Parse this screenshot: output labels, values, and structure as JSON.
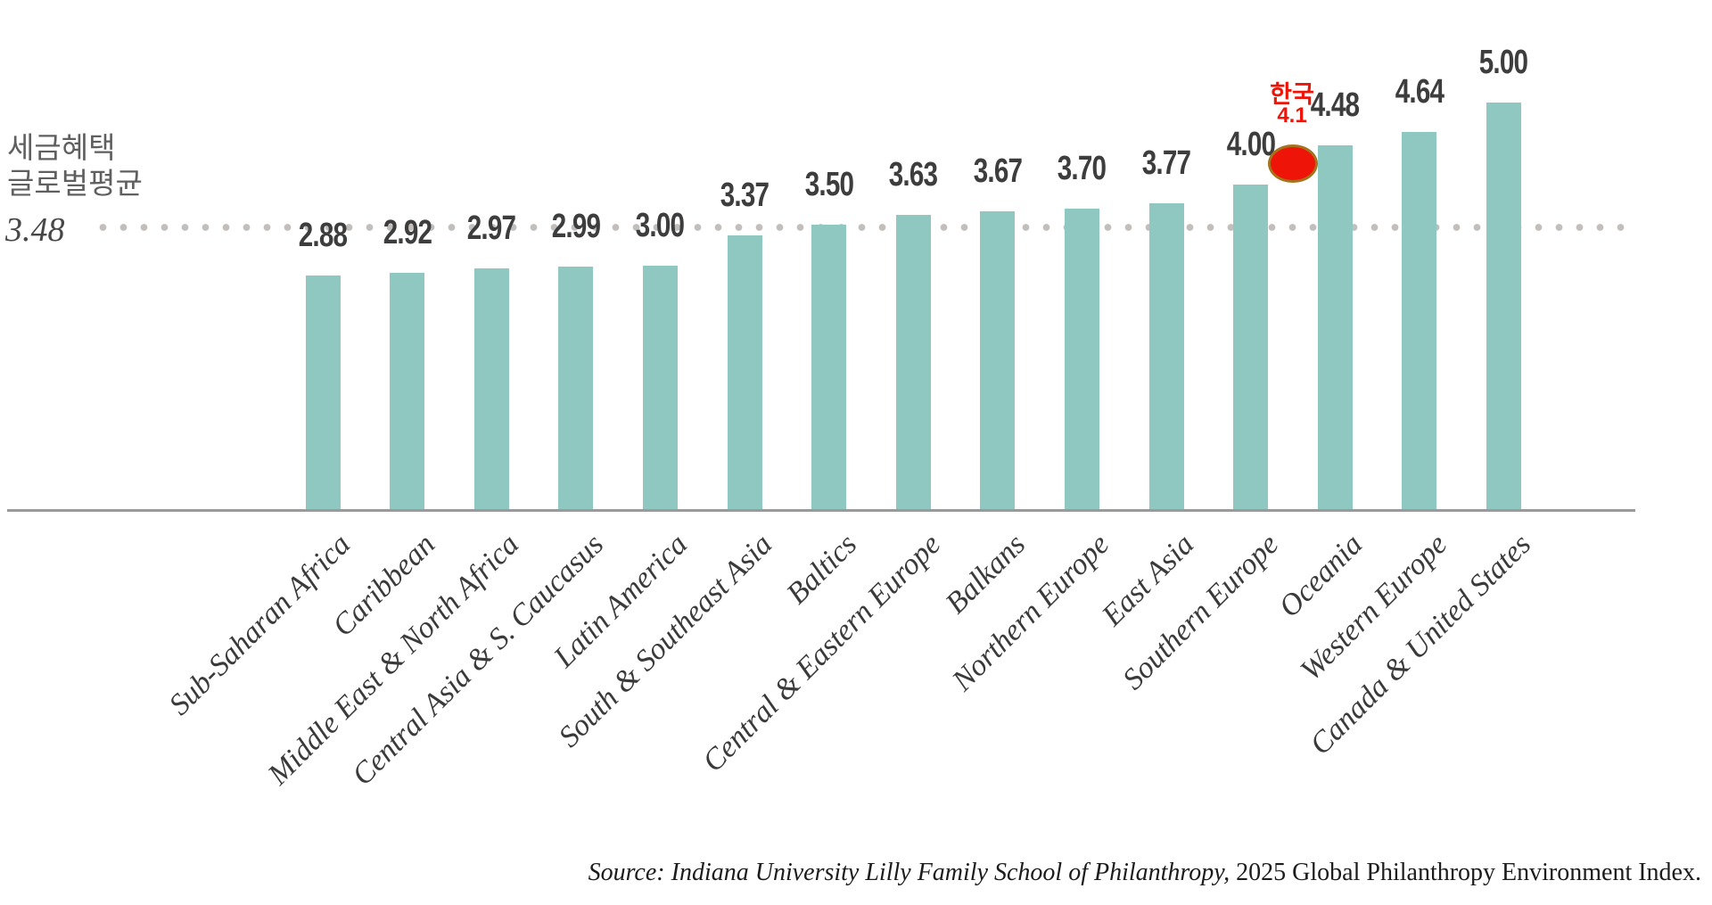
{
  "chart_data": {
    "type": "bar",
    "title_lines": [
      "세금혜택",
      "글로벌평균"
    ],
    "global_average": {
      "value": 3.48,
      "label": "3.48"
    },
    "categories": [
      "Sub-Saharan Africa",
      "Caribbean",
      "Middle East & North Africa",
      "Central Asia & S. Caucasus",
      "Latin America",
      "South & Southeast Asia",
      "Baltics",
      "Central & Eastern Europe",
      "Balkans",
      "Northern Europe",
      "East Asia",
      "Southern Europe",
      "Oceania",
      "Western Europe",
      "Canada & United States"
    ],
    "values": [
      2.88,
      2.92,
      2.97,
      2.99,
      3.0,
      3.37,
      3.5,
      3.63,
      3.67,
      3.7,
      3.77,
      4.0,
      4.48,
      4.64,
      5.0
    ],
    "value_labels": [
      "2.88",
      "2.92",
      "2.97",
      "2.99",
      "3.00",
      "3.37",
      "3.50",
      "3.63",
      "3.67",
      "3.70",
      "3.77",
      "4.00",
      "4.48",
      "4.64",
      "5.00"
    ],
    "korea_annotation": {
      "label": "한국",
      "value": 4.1,
      "value_label": "4.1"
    },
    "ylim": [
      0,
      5
    ],
    "grid": "dotted horizontal reference line at global average only",
    "legend": "none",
    "colors": {
      "bar": "#8fc8c0",
      "axis": "#9a9a9a",
      "dotted_line": "#c2bebb",
      "value_label": "#3d3d3d",
      "title": "#5f5f5f",
      "korea_dot": "#ee1508",
      "korea_dot_border": "#a5731d",
      "korea_text": "#ee1508"
    }
  },
  "source": {
    "italic_part": "Source: Indiana University Lilly Family School of Philanthropy,",
    "regular_part": " 2025 Global Philanthropy Environment Index."
  }
}
